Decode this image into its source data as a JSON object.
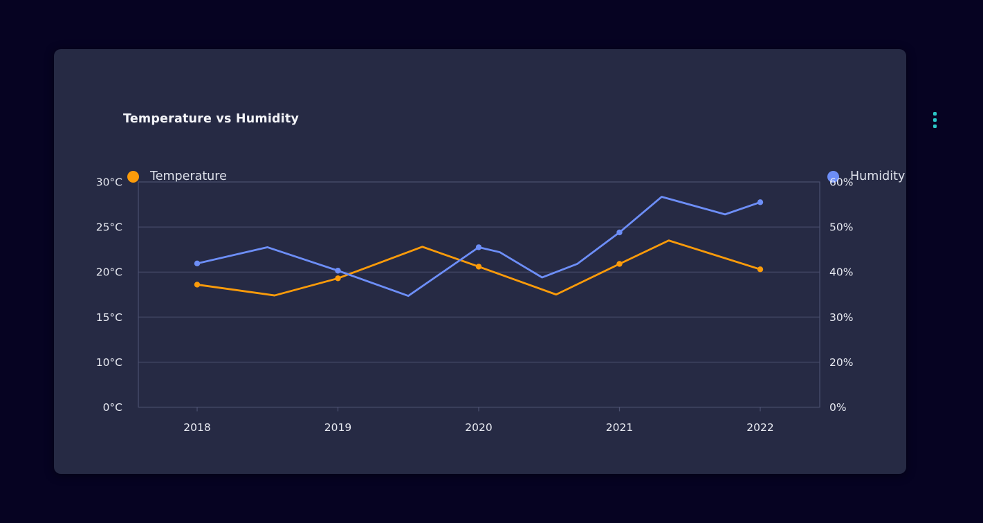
{
  "card": {
    "title": "Temperature vs Humidity",
    "menu_icon": "kebab-vertical-dots",
    "accent_color": "#2bc8c8",
    "background_color": "#262a44",
    "page_background_color": "#060322",
    "grid_color": "#4c5170"
  },
  "legend": {
    "left": {
      "label": "Temperature",
      "color": "#fb9b0a"
    },
    "right": {
      "label": "Humidity",
      "color": "#6d8ef7"
    }
  },
  "chart_data": {
    "type": "line",
    "title": "Temperature vs Humidity",
    "grid": "horizontal-only",
    "legend_position": "top, split left/right",
    "x_axis": {
      "tick_labels": [
        "2018",
        "2019",
        "2020",
        "2021",
        "2022"
      ],
      "tick_values": [
        2018,
        2019,
        2020,
        2021,
        2022
      ]
    },
    "y_axis_left": {
      "unit": "°C",
      "tick_labels": [
        "0°C",
        "10°C",
        "15°C",
        "20°C",
        "25°C",
        "30°C"
      ],
      "tick_values": [
        0,
        10,
        15,
        20,
        25,
        30
      ],
      "note": "non-linear scale: equal spacing between listed ticks"
    },
    "y_axis_right": {
      "unit": "%",
      "tick_labels": [
        "0%",
        "20%",
        "30%",
        "40%",
        "50%",
        "60%"
      ],
      "tick_values": [
        0,
        20,
        30,
        40,
        50,
        60
      ],
      "note": "non-linear scale: equal spacing between listed ticks"
    },
    "series": [
      {
        "name": "Temperature",
        "axis": "left",
        "color": "#fb9b0a",
        "points": [
          [
            2018.0,
            18.6
          ],
          [
            2018.55,
            17.4
          ],
          [
            2019.0,
            19.3
          ],
          [
            2019.6,
            22.8
          ],
          [
            2020.0,
            20.6
          ],
          [
            2020.55,
            17.5
          ],
          [
            2021.0,
            20.9
          ],
          [
            2021.35,
            23.5
          ],
          [
            2022.0,
            20.3
          ]
        ],
        "marker_years": [
          2018,
          2019,
          2020,
          2021,
          2022
        ],
        "marker_values": [
          18.6,
          19.3,
          20.6,
          20.9,
          20.3
        ]
      },
      {
        "name": "Humidity",
        "axis": "right",
        "color": "#6d8ef7",
        "points": [
          [
            2018.0,
            41.9
          ],
          [
            2018.5,
            45.5
          ],
          [
            2019.0,
            40.3
          ],
          [
            2019.5,
            34.7
          ],
          [
            2020.0,
            45.5
          ],
          [
            2020.15,
            44.4
          ],
          [
            2020.45,
            38.8
          ],
          [
            2020.7,
            41.8
          ],
          [
            2021.0,
            48.8
          ],
          [
            2021.3,
            56.7
          ],
          [
            2021.75,
            52.8
          ],
          [
            2022.0,
            55.5
          ]
        ],
        "marker_years": [
          2018,
          2019,
          2020,
          2021,
          2022
        ],
        "marker_values": [
          41.9,
          40.3,
          45.5,
          48.8,
          55.5
        ]
      }
    ]
  }
}
